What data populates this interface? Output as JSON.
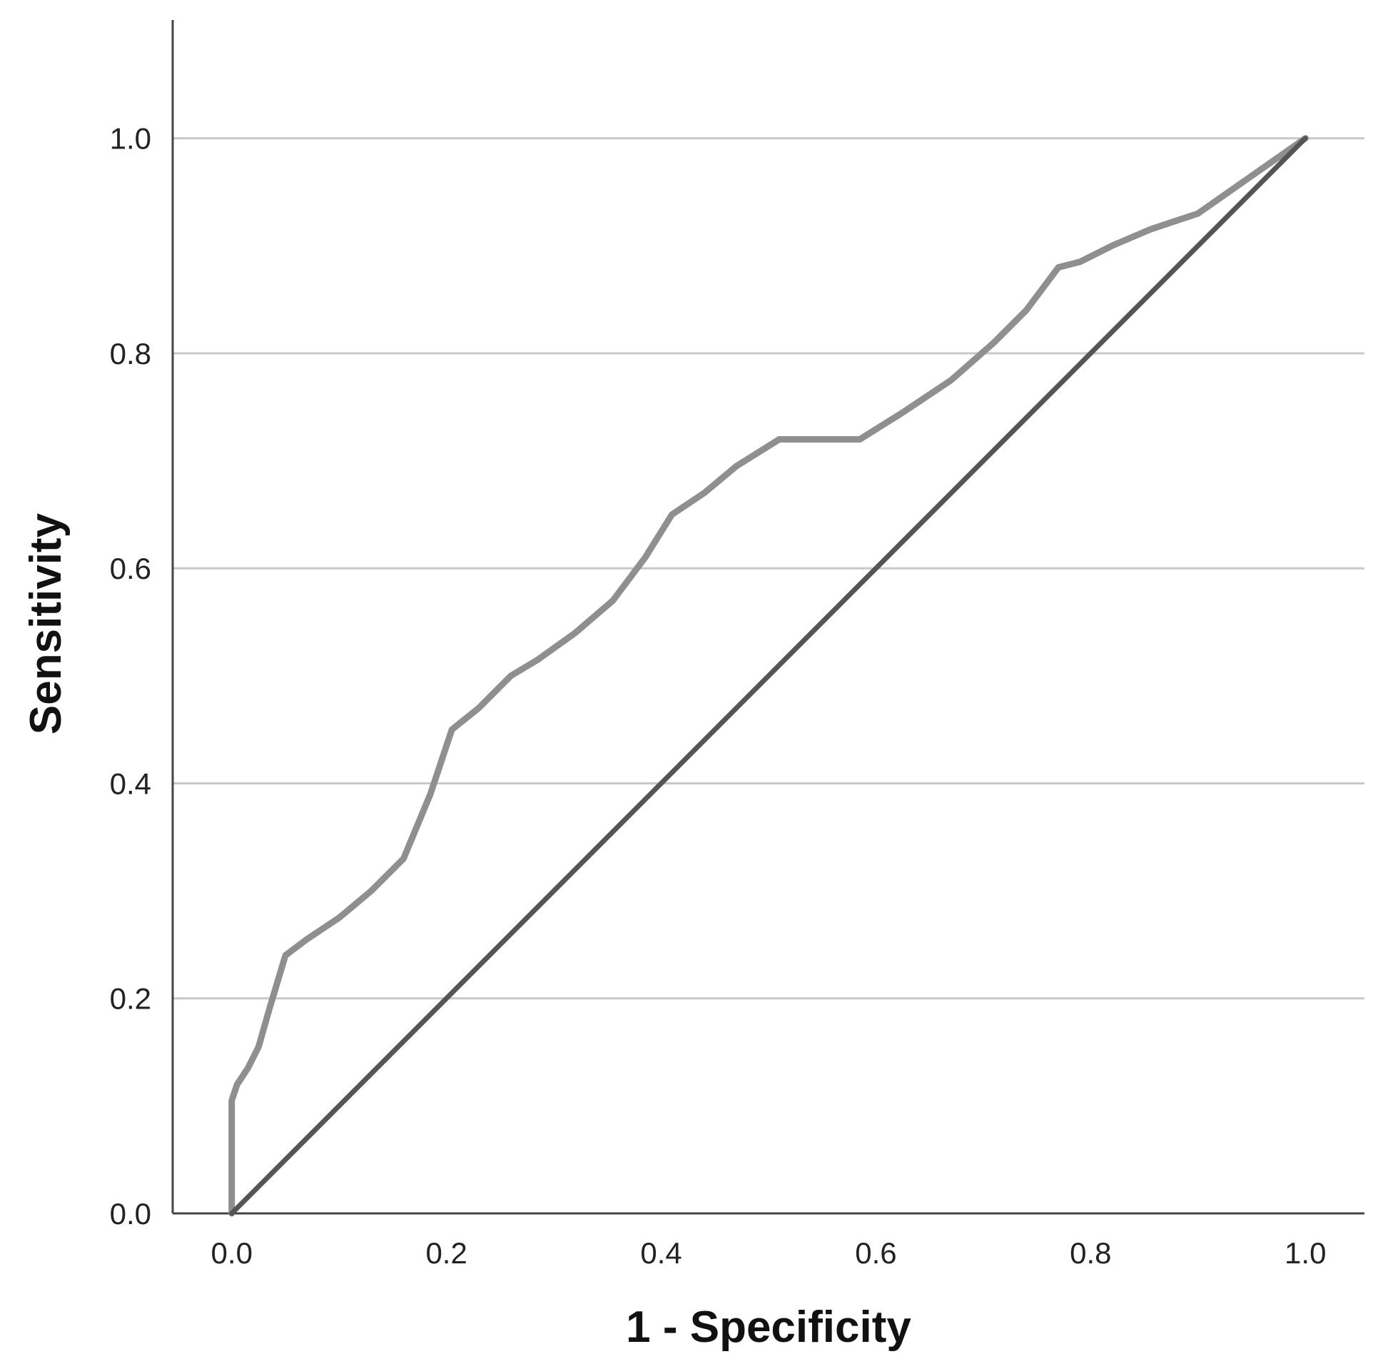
{
  "chart_data": {
    "type": "line",
    "title": "",
    "xlabel": "1 - Specificity",
    "ylabel": "Sensitivity",
    "xlim": [
      -0.055,
      1.055
    ],
    "ylim": [
      0,
      1.11
    ],
    "x_ticks": [
      "0.0",
      "0.2",
      "0.4",
      "0.6",
      "0.8",
      "1.0"
    ],
    "y_ticks": [
      "0.0",
      "0.2",
      "0.4",
      "0.6",
      "0.8",
      "1.0"
    ],
    "grid": "horizontal",
    "legend": "none",
    "series": [
      {
        "color": "#8f8f8f",
        "x": [
          0.0,
          0.0,
          0.005,
          0.015,
          0.025,
          0.035,
          0.05,
          0.07,
          0.1,
          0.13,
          0.16,
          0.185,
          0.205,
          0.23,
          0.26,
          0.285,
          0.32,
          0.355,
          0.385,
          0.41,
          0.44,
          0.47,
          0.51,
          0.55,
          0.585,
          0.625,
          0.67,
          0.71,
          0.74,
          0.77,
          0.79,
          0.82,
          0.855,
          0.9,
          0.95,
          1.0
        ],
        "y": [
          0.0,
          0.105,
          0.12,
          0.135,
          0.155,
          0.19,
          0.24,
          0.255,
          0.275,
          0.3,
          0.33,
          0.39,
          0.45,
          0.47,
          0.5,
          0.515,
          0.54,
          0.57,
          0.61,
          0.65,
          0.67,
          0.695,
          0.72,
          0.72,
          0.72,
          0.745,
          0.775,
          0.81,
          0.84,
          0.88,
          0.885,
          0.9,
          0.915,
          0.93,
          0.965,
          1.0
        ]
      },
      {
        "color": "#555555",
        "x": [
          0.0,
          1.0
        ],
        "y": [
          0.0,
          1.0
        ]
      }
    ]
  }
}
